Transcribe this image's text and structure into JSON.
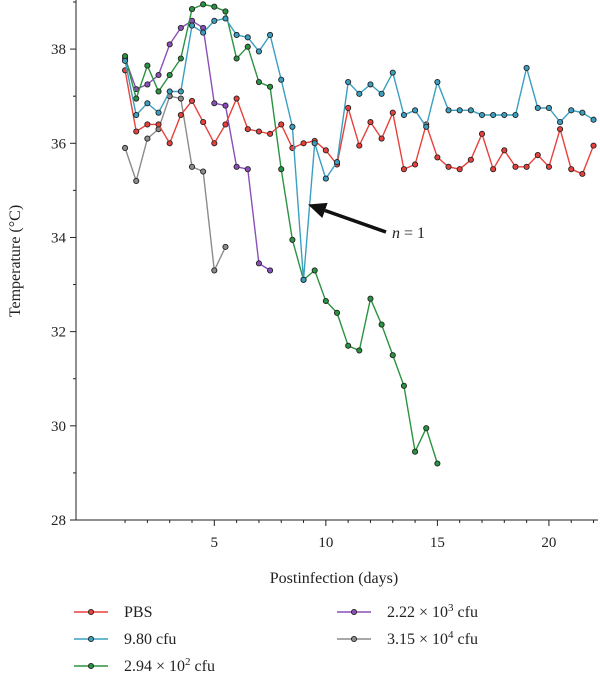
{
  "chart_data": {
    "type": "line",
    "title": "",
    "xlabel": "Postinfection (days)",
    "ylabel": "Temperature (°C)",
    "xlim": [
      -1.2,
      22.2
    ],
    "ylim": [
      28,
      39
    ],
    "xticks": [
      5,
      10,
      15,
      20
    ],
    "yticks": [
      28,
      30,
      32,
      34,
      36,
      38
    ],
    "grid": false,
    "legend_position": "bottom",
    "annotation": {
      "text_italic": "n",
      "text_rest": " = 1",
      "points_to": [
        9.2,
        34.7
      ]
    },
    "series": [
      {
        "name": "PBS",
        "color": "#e8413c",
        "x": [
          1,
          1.5,
          2,
          2.5,
          3,
          3.5,
          4,
          4.5,
          5,
          5.5,
          6,
          6.5,
          7,
          7.5,
          8,
          8.5,
          9,
          9.5,
          10,
          10.5,
          11,
          11.5,
          12,
          12.5,
          13,
          13.5,
          14,
          14.5,
          15,
          15.5,
          16,
          16.5,
          17,
          17.5,
          18,
          18.5,
          19,
          19.5,
          20,
          20.5,
          21,
          21.5,
          22
        ],
        "values": [
          37.55,
          36.25,
          36.4,
          36.4,
          36.0,
          36.6,
          36.9,
          36.45,
          36.0,
          36.4,
          36.95,
          36.3,
          36.25,
          36.2,
          36.4,
          35.9,
          36.0,
          36.05,
          35.85,
          35.55,
          36.75,
          35.95,
          36.45,
          36.1,
          36.65,
          35.45,
          35.55,
          36.4,
          35.7,
          35.5,
          35.45,
          35.65,
          36.2,
          35.45,
          35.85,
          35.5,
          35.5,
          35.75,
          35.5,
          36.3,
          35.45,
          35.35,
          35.95
        ]
      },
      {
        "name": "9.80 cfu",
        "color": "#3a9fc1",
        "x": [
          1,
          1.5,
          2,
          2.5,
          3,
          3.5,
          4,
          4.5,
          5,
          5.5,
          6,
          6.5,
          7,
          7.5,
          8,
          8.5,
          9,
          9.5,
          10,
          10.5,
          11,
          11.5,
          12,
          12.5,
          13,
          13.5,
          14,
          14.5,
          15,
          15.5,
          16,
          16.5,
          17,
          17.5,
          18,
          18.5,
          19,
          19.5,
          20,
          20.5,
          21,
          21.5,
          22
        ],
        "values": [
          37.75,
          36.6,
          36.85,
          36.65,
          37.1,
          37.1,
          38.5,
          38.35,
          38.6,
          38.65,
          38.3,
          38.25,
          37.95,
          38.3,
          37.35,
          36.35,
          33.1,
          36.0,
          35.25,
          35.6,
          37.3,
          37.05,
          37.25,
          37.05,
          37.5,
          36.6,
          36.7,
          36.35,
          37.3,
          36.7,
          36.7,
          36.7,
          36.6,
          36.6,
          36.6,
          36.6,
          37.6,
          36.75,
          36.75,
          36.45,
          36.7,
          36.65,
          36.5
        ]
      },
      {
        "name": "2.94 × 10² cfu",
        "color": "#2a9340",
        "x": [
          1,
          1.5,
          2,
          2.5,
          3,
          3.5,
          4,
          4.5,
          5,
          5.5,
          6,
          6.5,
          7,
          7.5,
          8,
          8.5,
          9,
          9.5,
          10,
          10.5,
          11,
          11.5,
          12,
          12.5,
          13,
          13.5,
          14,
          14.5,
          15
        ],
        "values": [
          37.85,
          36.95,
          37.65,
          37.1,
          37.45,
          37.8,
          38.85,
          38.95,
          38.9,
          38.8,
          37.8,
          38.05,
          37.3,
          37.2,
          35.45,
          33.95,
          33.1,
          33.3,
          32.65,
          32.4,
          31.7,
          31.6,
          32.7,
          32.15,
          31.5,
          30.85,
          29.45,
          29.95,
          29.2
        ]
      },
      {
        "name": "2.22 × 10³ cfu",
        "color": "#8a4fb8",
        "x": [
          1,
          1.5,
          2,
          2.5,
          3,
          3.5,
          4,
          4.5,
          5,
          5.5,
          6,
          6.5,
          7,
          7.5
        ],
        "values": [
          37.8,
          37.15,
          37.25,
          37.45,
          38.1,
          38.45,
          38.6,
          38.45,
          36.85,
          36.8,
          35.5,
          35.45,
          33.45,
          33.3
        ]
      },
      {
        "name": "3.15 × 10⁴ cfu",
        "color": "#8c8c8c",
        "x": [
          1,
          1.5,
          2,
          2.5,
          3,
          3.5,
          4,
          4.5,
          5,
          5.5
        ],
        "values": [
          35.9,
          35.2,
          36.1,
          36.3,
          37.0,
          36.95,
          35.5,
          35.4,
          33.3,
          33.8
        ]
      }
    ]
  }
}
